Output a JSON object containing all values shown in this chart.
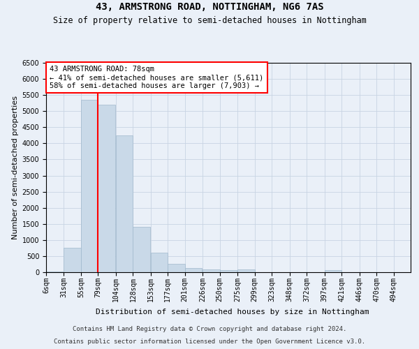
{
  "title": "43, ARMSTRONG ROAD, NOTTINGHAM, NG6 7AS",
  "subtitle": "Size of property relative to semi-detached houses in Nottingham",
  "xlabel": "Distribution of semi-detached houses by size in Nottingham",
  "ylabel": "Number of semi-detached properties",
  "annotation_title": "43 ARMSTRONG ROAD: 78sqm",
  "annotation_line1": "← 41% of semi-detached houses are smaller (5,611)",
  "annotation_line2": "58% of semi-detached houses are larger (7,903) →",
  "footer_line1": "Contains HM Land Registry data © Crown copyright and database right 2024.",
  "footer_line2": "Contains public sector information licensed under the Open Government Licence v3.0.",
  "bin_starts": [
    6,
    31,
    55,
    79,
    104,
    128,
    153,
    177,
    201,
    226,
    250,
    275,
    299,
    323,
    348,
    372,
    397,
    421,
    446,
    470
  ],
  "bin_labels": [
    "6sqm",
    "31sqm",
    "55sqm",
    "79sqm",
    "104sqm",
    "128sqm",
    "153sqm",
    "177sqm",
    "201sqm",
    "226sqm",
    "250sqm",
    "275sqm",
    "299sqm",
    "323sqm",
    "348sqm",
    "372sqm",
    "397sqm",
    "421sqm",
    "446sqm",
    "470sqm",
    "494sqm"
  ],
  "bar_heights": [
    30,
    750,
    5350,
    5200,
    4250,
    1400,
    600,
    260,
    140,
    90,
    70,
    90,
    0,
    0,
    0,
    0,
    70,
    0,
    0,
    0
  ],
  "bar_color": "#c9d9e8",
  "bar_edge_color": "#a0b8cc",
  "vline_x": 79,
  "vline_color": "red",
  "ylim": [
    0,
    6500
  ],
  "yticks": [
    0,
    500,
    1000,
    1500,
    2000,
    2500,
    3000,
    3500,
    4000,
    4500,
    5000,
    5500,
    6000,
    6500
  ],
  "grid_color": "#c8d4e3",
  "background_color": "#eaf0f8",
  "annotation_box_color": "white",
  "annotation_box_edge": "red",
  "title_fontsize": 10,
  "subtitle_fontsize": 8.5,
  "axis_label_fontsize": 8,
  "tick_fontsize": 7,
  "annotation_fontsize": 7.5,
  "footer_fontsize": 6.5
}
